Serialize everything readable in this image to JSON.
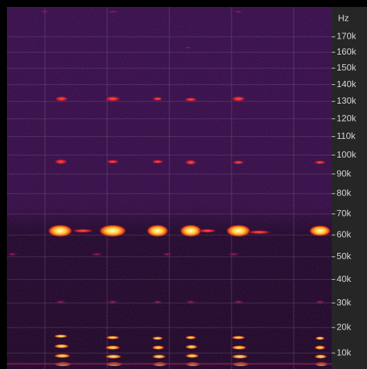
{
  "chart_data": {
    "type": "spectrogram",
    "y_label": "Hz",
    "ylim": [
      4000,
      190000
    ],
    "yticks": [
      {
        "value": 10000,
        "label": "10k"
      },
      {
        "value": 20000,
        "label": "20k"
      },
      {
        "value": 30000,
        "label": "30k"
      },
      {
        "value": 40000,
        "label": "40k"
      },
      {
        "value": 50000,
        "label": "50k"
      },
      {
        "value": 60000,
        "label": "60k"
      },
      {
        "value": 70000,
        "label": "70k"
      },
      {
        "value": 80000,
        "label": "80k"
      },
      {
        "value": 90000,
        "label": "90k"
      },
      {
        "value": 100000,
        "label": "100k"
      },
      {
        "value": 110000,
        "label": "110k"
      },
      {
        "value": 120000,
        "label": "120k"
      },
      {
        "value": 130000,
        "label": "130k"
      },
      {
        "value": 140000,
        "label": "140k"
      },
      {
        "value": 150000,
        "label": "150k"
      },
      {
        "value": 160000,
        "label": "160k"
      },
      {
        "value": 170000,
        "label": "170k"
      }
    ],
    "grid": true
  }
}
